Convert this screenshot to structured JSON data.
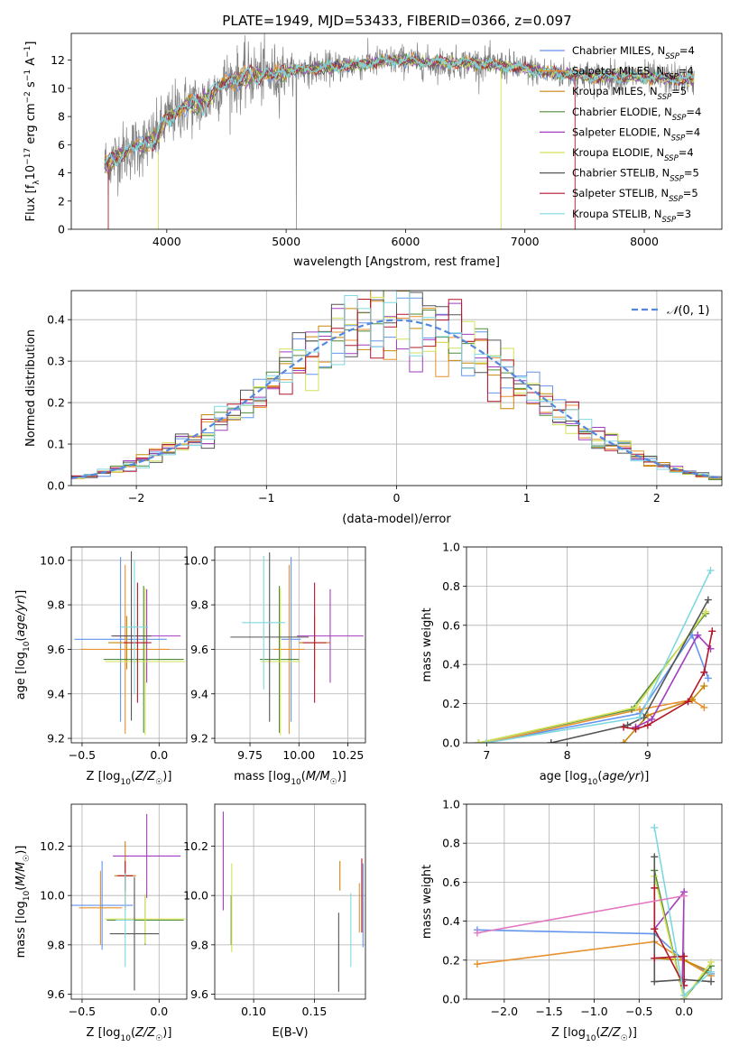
{
  "figure": {
    "title": "PLATE=1949, MJD=53433, FIBERID=0366, z=0.097"
  },
  "colors": {
    "Chabrier MILES": "#6495ED",
    "Salpeter MILES": "#E8912F",
    "Kroupa MILES": "#C8860B",
    "Chabrier ELODIE": "#4E8B3A",
    "Salpeter ELODIE": "#A23CC0",
    "Kroupa ELODIE": "#D4E157",
    "Chabrier STELIB": "#555555",
    "Salpeter STELIB": "#B2182B",
    "Kroupa STELIB": "#7FD8E0"
  },
  "chart_data": [
    {
      "id": "spectrum",
      "type": "line",
      "title": "PLATE=1949, MJD=53433, FIBERID=0366, z=0.097",
      "xlabel": "wavelength [Angstrom, rest frame]",
      "ylabel": "Flux [f_λ10^-17 erg cm^-2 s^-1 A^-1]",
      "xlim": [
        3200,
        8650
      ],
      "ylim": [
        0,
        13.9
      ],
      "xticks": [
        "4000",
        "5000",
        "6000",
        "7000",
        "8000"
      ],
      "yticks": [
        "0",
        "2",
        "4",
        "6",
        "8",
        "10",
        "12"
      ],
      "continuum": {
        "x": [
          3500,
          3600,
          3700,
          3800,
          3900,
          4000,
          4100,
          4200,
          4300,
          4400,
          4500,
          4600,
          4700,
          4800,
          4900,
          5000,
          5200,
          5400,
          5600,
          5800,
          6000,
          6200,
          6400,
          6600,
          6800,
          7000,
          7200,
          7400,
          7600,
          7800,
          8000,
          8200,
          8400
        ],
        "y": [
          4.6,
          5.3,
          5.7,
          6.0,
          6.4,
          7.8,
          8.5,
          8.9,
          8.9,
          9.8,
          10.5,
          10.6,
          10.9,
          11.0,
          10.9,
          11.2,
          11.4,
          11.5,
          11.7,
          11.9,
          12.0,
          11.8,
          11.8,
          11.8,
          11.6,
          11.4,
          11.1,
          11.0,
          10.8,
          10.9,
          10.8,
          10.7,
          10.6
        ]
      },
      "series": [
        {
          "name": "Chabrier MILES",
          "nssp": "4"
        },
        {
          "name": "Salpeter MILES",
          "nssp": "4"
        },
        {
          "name": "Kroupa MILES",
          "nssp": "5"
        },
        {
          "name": "Chabrier ELODIE",
          "nssp": "4"
        },
        {
          "name": "Salpeter ELODIE",
          "nssp": "4"
        },
        {
          "name": "Kroupa ELODIE",
          "nssp": "4"
        },
        {
          "name": "Chabrier STELIB",
          "nssp": "5"
        },
        {
          "name": "Salpeter STELIB",
          "nssp": "5"
        },
        {
          "name": "Kroupa STELIB",
          "nssp": "3"
        }
      ],
      "legend_loc": "right"
    },
    {
      "id": "residuals",
      "type": "line",
      "xlabel": "(data-model)/error",
      "ylabel": "Normed distribution",
      "xlim": [
        -2.5,
        2.5
      ],
      "ylim": [
        0,
        0.47
      ],
      "xticks": [
        -2,
        -1,
        0,
        1,
        2
      ],
      "xtick_labels": [
        "−2",
        "−1",
        "0",
        "1",
        "2"
      ],
      "yticks": [
        "0.0",
        "0.1",
        "0.2",
        "0.3",
        "0.4"
      ],
      "bin_width": 0.1,
      "gaussian_label": "N(0,1)",
      "legend_loc": "top-right",
      "grid": true
    },
    {
      "id": "age_vs_Z",
      "type": "scatter",
      "xlabel": "Z [log10(Z/Z☉)]",
      "ylabel": "age  [log10(age/yr)]",
      "xlim": [
        -0.57,
        0.18
      ],
      "ylim": [
        9.18,
        10.06
      ],
      "xticks": [
        -0.5,
        0.0
      ],
      "xtick_labels": [
        "−0.5",
        "0.0"
      ],
      "yticks": [
        "9.2",
        "9.4",
        "9.6",
        "9.8",
        "10.0"
      ],
      "points": [
        {
          "series": "Chabrier MILES",
          "x": -0.25,
          "xerr": 0.3,
          "y": 9.645,
          "yerr": 0.37
        },
        {
          "series": "Salpeter MILES",
          "x": -0.22,
          "xerr": 0.29,
          "y": 9.6,
          "yerr": 0.38
        },
        {
          "series": "Kroupa MILES",
          "x": -0.21,
          "xerr": 0.12,
          "y": 9.63,
          "yerr": 0.12
        },
        {
          "series": "Chabrier ELODIE",
          "x": -0.1,
          "xerr": 0.26,
          "y": 9.555,
          "yerr": 0.33
        },
        {
          "series": "Salpeter ELODIE",
          "x": -0.08,
          "xerr": 0.22,
          "y": 9.66,
          "yerr": 0.21
        },
        {
          "series": "Kroupa ELODIE",
          "x": -0.09,
          "xerr": 0.26,
          "y": 9.545,
          "yerr": 0.33
        },
        {
          "series": "Chabrier STELIB",
          "x": -0.18,
          "xerr": 0.13,
          "y": 9.66,
          "yerr": 0.38
        },
        {
          "series": "Salpeter STELIB",
          "x": -0.14,
          "xerr": 0.09,
          "y": 9.63,
          "yerr": 0.27
        },
        {
          "series": "Kroupa STELIB",
          "x": -0.16,
          "xerr": 0.09,
          "y": 9.7,
          "yerr": 0.3
        }
      ],
      "grid": true
    },
    {
      "id": "age_vs_mass",
      "type": "scatter",
      "xlabel": "mass [log10(M/M☉)]",
      "ylabel": "",
      "xlim": [
        9.57,
        10.34
      ],
      "ylim": [
        9.18,
        10.06
      ],
      "xticks": [
        9.75,
        10.0,
        10.25
      ],
      "xtick_labels": [
        "9.75",
        "10.00",
        "10.25"
      ],
      "yticks": [
        "9.2",
        "9.4",
        "9.6",
        "9.8",
        "10.0"
      ],
      "points": [
        {
          "series": "Chabrier MILES",
          "x": 9.96,
          "xerr": 0.05,
          "y": 9.645,
          "yerr": 0.37
        },
        {
          "series": "Salpeter MILES",
          "x": 9.95,
          "xerr": 0.08,
          "y": 9.6,
          "yerr": 0.38
        },
        {
          "series": "Kroupa MILES",
          "x": 10.08,
          "xerr": 0.08,
          "y": 9.63,
          "yerr": 0.12
        },
        {
          "series": "Chabrier ELODIE",
          "x": 9.9,
          "xerr": 0.1,
          "y": 9.555,
          "yerr": 0.33
        },
        {
          "series": "Salpeter ELODIE",
          "x": 10.16,
          "xerr": 0.17,
          "y": 9.66,
          "yerr": 0.21
        },
        {
          "series": "Kroupa ELODIE",
          "x": 9.905,
          "xerr": 0.1,
          "y": 9.545,
          "yerr": 0.33
        },
        {
          "series": "Chabrier STELIB",
          "x": 9.85,
          "xerr": 0.2,
          "y": 9.655,
          "yerr": 0.38
        },
        {
          "series": "Salpeter STELIB",
          "x": 10.08,
          "xerr": 0.06,
          "y": 9.63,
          "yerr": 0.27
        },
        {
          "series": "Kroupa STELIB",
          "x": 9.82,
          "xerr": 0.11,
          "y": 9.72,
          "yerr": 0.3
        }
      ],
      "grid": true
    },
    {
      "id": "weight_vs_age",
      "type": "line",
      "xlabel": "age  [log10(age/yr)]",
      "ylabel": "mass weight",
      "xlim": [
        6.75,
        9.92
      ],
      "ylim": [
        0,
        1.0
      ],
      "xticks": [
        "7",
        "8",
        "9"
      ],
      "yticks": [
        "0.0",
        "0.2",
        "0.4",
        "0.6",
        "0.8",
        "1.0"
      ],
      "series": [
        {
          "name": "Chabrier MILES",
          "x": [
            7.0,
            8.9,
            9.55,
            9.75
          ],
          "y": [
            0.0,
            0.15,
            0.55,
            0.33
          ]
        },
        {
          "name": "Salpeter MILES",
          "x": [
            7.0,
            8.9,
            9.55,
            9.7
          ],
          "y": [
            0.0,
            0.17,
            0.22,
            0.18
          ]
        },
        {
          "name": "Kroupa MILES",
          "x": [
            8.7,
            9.0,
            9.55,
            9.7
          ],
          "y": [
            0.0,
            0.14,
            0.22,
            0.29
          ]
        },
        {
          "name": "Chabrier ELODIE",
          "x": [
            6.9,
            8.8,
            9.72
          ],
          "y": [
            0.0,
            0.17,
            0.66
          ]
        },
        {
          "name": "Salpeter ELODIE",
          "x": [
            8.85,
            9.05,
            9.62,
            9.78
          ],
          "y": [
            0.08,
            0.12,
            0.55,
            0.48
          ]
        },
        {
          "name": "Kroupa ELODIE",
          "x": [
            6.9,
            8.85,
            9.72
          ],
          "y": [
            0.0,
            0.18,
            0.67
          ]
        },
        {
          "name": "Chabrier STELIB",
          "x": [
            7.8,
            8.75,
            8.95,
            9.75
          ],
          "y": [
            0.0,
            0.09,
            0.13,
            0.73
          ]
        },
        {
          "name": "Salpeter STELIB",
          "x": [
            8.7,
            8.85,
            9.0,
            9.5,
            9.7,
            9.8
          ],
          "y": [
            0.08,
            0.07,
            0.09,
            0.21,
            0.36,
            0.57
          ]
        },
        {
          "name": "Kroupa STELIB",
          "x": [
            7.0,
            8.9,
            9.78
          ],
          "y": [
            0.0,
            0.13,
            0.88
          ]
        }
      ],
      "grid": true
    },
    {
      "id": "mass_vs_Z",
      "type": "scatter",
      "xlabel": "Z [log10(Z/Z☉)]",
      "ylabel": "mass [log10(M/M☉)]",
      "xlim": [
        -0.57,
        0.18
      ],
      "ylim": [
        9.58,
        10.37
      ],
      "xticks": [
        -0.5,
        0.0
      ],
      "xtick_labels": [
        "−0.5",
        "0.0"
      ],
      "yticks": [
        "9.6",
        "9.8",
        "10.0",
        "10.2"
      ],
      "points": [
        {
          "series": "Chabrier MILES",
          "x": -0.37,
          "xerr": 0.2,
          "y": 9.96,
          "yerr": 0.18
        },
        {
          "series": "Salpeter MILES",
          "x": -0.38,
          "xerr": 0.14,
          "y": 9.95,
          "yerr": 0.15
        },
        {
          "series": "Kroupa MILES",
          "x": -0.22,
          "xerr": 0.07,
          "y": 10.08,
          "yerr": 0.14
        },
        {
          "series": "Chabrier ELODIE",
          "x": -0.09,
          "xerr": 0.25,
          "y": 9.9,
          "yerr": 0.1
        },
        {
          "series": "Salpeter ELODIE",
          "x": -0.08,
          "xerr": 0.22,
          "y": 10.16,
          "yerr": 0.17
        },
        {
          "series": "Kroupa ELODIE",
          "x": -0.09,
          "xerr": 0.26,
          "y": 9.905,
          "yerr": 0.1
        },
        {
          "series": "Chabrier STELIB",
          "x": -0.16,
          "xerr": 0.16,
          "y": 9.845,
          "yerr": 0.23
        },
        {
          "series": "Salpeter STELIB",
          "x": -0.22,
          "xerr": 0.05,
          "y": 10.08,
          "yerr": 0.06
        },
        {
          "series": "Kroupa STELIB",
          "x": -0.22,
          "xerr": 0.06,
          "y": 9.9,
          "yerr": 0.19
        }
      ],
      "grid": true
    },
    {
      "id": "mass_vs_ebv",
      "type": "scatter",
      "xlabel": "E(B-V)",
      "ylabel": "",
      "xlim": [
        0.068,
        0.192
      ],
      "ylim": [
        9.58,
        10.37
      ],
      "xticks": [
        0.1,
        0.15
      ],
      "xtick_labels": [
        "0.10",
        "0.15"
      ],
      "yticks": [
        "9.6",
        "9.8",
        "10.0",
        "10.2"
      ],
      "points": [
        {
          "series": "Chabrier MILES",
          "x": 0.19,
          "xerr": 0.0,
          "y": 9.96,
          "yerr": 0.17
        },
        {
          "series": "Salpeter MILES",
          "x": 0.187,
          "xerr": 0.0,
          "y": 9.95,
          "yerr": 0.1
        },
        {
          "series": "Kroupa MILES",
          "x": 0.171,
          "xerr": 0.0,
          "y": 10.08,
          "yerr": 0.06
        },
        {
          "series": "Chabrier ELODIE",
          "x": 0.0815,
          "xerr": 0.0,
          "y": 9.9,
          "yerr": 0.1
        },
        {
          "series": "Salpeter ELODIE",
          "x": 0.075,
          "xerr": 0.0,
          "y": 10.14,
          "yerr": 0.2
        },
        {
          "series": "Kroupa ELODIE",
          "x": 0.082,
          "xerr": 0.0,
          "y": 9.95,
          "yerr": 0.18
        },
        {
          "series": "Chabrier STELIB",
          "x": 0.17,
          "xerr": 0.0,
          "y": 9.77,
          "yerr": 0.16
        },
        {
          "series": "Salpeter STELIB",
          "x": 0.189,
          "xerr": 0.0,
          "y": 10.0,
          "yerr": 0.15
        },
        {
          "series": "Kroupa STELIB",
          "x": 0.18,
          "xerr": 0.0,
          "y": 9.86,
          "yerr": 0.15
        }
      ],
      "grid": true
    },
    {
      "id": "weight_vs_Z",
      "type": "line",
      "xlabel": "Z [log10(Z/Z☉)]",
      "ylabel": "mass weight",
      "xlim": [
        -2.42,
        0.42
      ],
      "ylim": [
        0,
        1.0
      ],
      "xticks": [
        -2.0,
        -1.5,
        -1.0,
        -0.5,
        0.0
      ],
      "xtick_labels": [
        "−2.0",
        "−1.5",
        "−1.0",
        "−0.5",
        "0.0"
      ],
      "yticks": [
        "0.0",
        "0.2",
        "0.4",
        "0.6",
        "0.8",
        "1.0"
      ],
      "series": [
        {
          "name": "Chabrier MILES",
          "x": [
            -2.3,
            -0.33,
            0.0,
            0.3
          ],
          "y": [
            0.355,
            0.335,
            0.2,
            0.13
          ]
        },
        {
          "name": "Salpeter MILES",
          "x": [
            -2.3,
            -0.33,
            0.0,
            0.3
          ],
          "y": [
            0.18,
            0.295,
            0.2,
            0.12
          ]
        },
        {
          "name": "Kroupa MILES",
          "x": [
            -0.33,
            0.0,
            0.3
          ],
          "y": [
            0.21,
            0.2,
            0.14
          ]
        },
        {
          "name": "Chabrier ELODIE",
          "x": [
            -0.33,
            0.0,
            0.3
          ],
          "y": [
            0.66,
            0.0,
            0.17
          ]
        },
        {
          "name": "Salpeter ELODIE",
          "x": [
            -0.33,
            0.0,
            -0.02,
            0.0
          ],
          "y": [
            0.36,
            0.55,
            0.09,
            0.0
          ]
        },
        {
          "name": "Kroupa ELODIE",
          "x": [
            -0.33,
            0.0,
            0.3
          ],
          "y": [
            0.63,
            0.0,
            0.19
          ]
        },
        {
          "name": "Chabrier STELIB",
          "x": [
            -0.33,
            -0.33,
            0.0,
            0.3
          ],
          "y": [
            0.73,
            0.09,
            0.1,
            0.09
          ]
        },
        {
          "name": "Salpeter STELIB",
          "x": [
            -0.33,
            -0.33,
            0.0,
            0.0,
            -0.33
          ],
          "y": [
            0.57,
            0.36,
            0.07,
            0.22,
            0.21
          ]
        },
        {
          "name": "Kroupa STELIB",
          "x": [
            -0.33,
            0.0,
            0.3
          ],
          "y": [
            0.88,
            0.02,
            0.14
          ]
        },
        {
          "name": "Salpeter (pink)",
          "x": [
            -2.3,
            0.0
          ],
          "y": [
            0.34,
            0.53
          ]
        }
      ],
      "grid": true
    }
  ]
}
